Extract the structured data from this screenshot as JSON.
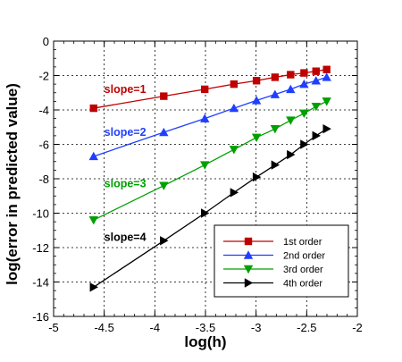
{
  "chart_data": {
    "type": "line",
    "xlabel": "log(h)",
    "ylabel": "log(error in predicted value)",
    "xlim": [
      -5,
      -2
    ],
    "ylim": [
      -16,
      0
    ],
    "xticks": [
      -5,
      -4.5,
      -4,
      -3.5,
      -3,
      -2.5,
      -2
    ],
    "xtick_labels": [
      "-5",
      "-4.5",
      "-4",
      "-3.5",
      "-3",
      "-2.5",
      "-2"
    ],
    "yticks": [
      0,
      -2,
      -4,
      -6,
      -8,
      -10,
      -12,
      -14,
      -16
    ],
    "ytick_labels": [
      "0",
      "-2",
      "-4",
      "-6",
      "-8",
      "-10",
      "-12",
      "-14",
      "-16"
    ],
    "grid": true,
    "legend_position": "bottom-right",
    "series": [
      {
        "name": "1st order",
        "color": "#c00000",
        "marker": "square",
        "x": [
          -4.605,
          -3.912,
          -3.507,
          -3.219,
          -2.996,
          -2.813,
          -2.659,
          -2.526,
          -2.408,
          -2.303
        ],
        "y": [
          -3.9,
          -3.2,
          -2.8,
          -2.5,
          -2.3,
          -2.1,
          -1.95,
          -1.85,
          -1.75,
          -1.65
        ]
      },
      {
        "name": "2nd order",
        "color": "#1f3fff",
        "marker": "triangle-up",
        "x": [
          -4.605,
          -3.912,
          -3.507,
          -3.219,
          -2.996,
          -2.813,
          -2.659,
          -2.526,
          -2.408,
          -2.303
        ],
        "y": [
          -6.7,
          -5.3,
          -4.5,
          -3.9,
          -3.45,
          -3.1,
          -2.8,
          -2.5,
          -2.3,
          -2.1
        ]
      },
      {
        "name": "3rd order",
        "color": "#00a000",
        "marker": "triangle-down",
        "x": [
          -4.605,
          -3.912,
          -3.507,
          -3.219,
          -2.996,
          -2.813,
          -2.659,
          -2.526,
          -2.408,
          -2.303
        ],
        "y": [
          -10.4,
          -8.4,
          -7.2,
          -6.3,
          -5.6,
          -5.1,
          -4.6,
          -4.2,
          -3.8,
          -3.5
        ]
      },
      {
        "name": "4th order",
        "color": "#000000",
        "marker": "triangle-right",
        "x": [
          -4.605,
          -3.912,
          -3.507,
          -3.219,
          -2.996,
          -2.813,
          -2.659,
          -2.526,
          -2.408,
          -2.303
        ],
        "y": [
          -14.3,
          -11.6,
          -10.0,
          -8.8,
          -7.9,
          -7.2,
          -6.6,
          -6.0,
          -5.5,
          -5.1
        ]
      }
    ],
    "annotations": [
      {
        "text": "slope=1",
        "color": "#c00000",
        "x": -4.5,
        "y": -3.0
      },
      {
        "text": "slope=2",
        "color": "#1f3fff",
        "x": -4.5,
        "y": -5.5
      },
      {
        "text": "slope=3",
        "color": "#00a000",
        "x": -4.5,
        "y": -8.5
      },
      {
        "text": "slope=4",
        "color": "#000000",
        "x": -4.5,
        "y": -11.6
      }
    ]
  }
}
